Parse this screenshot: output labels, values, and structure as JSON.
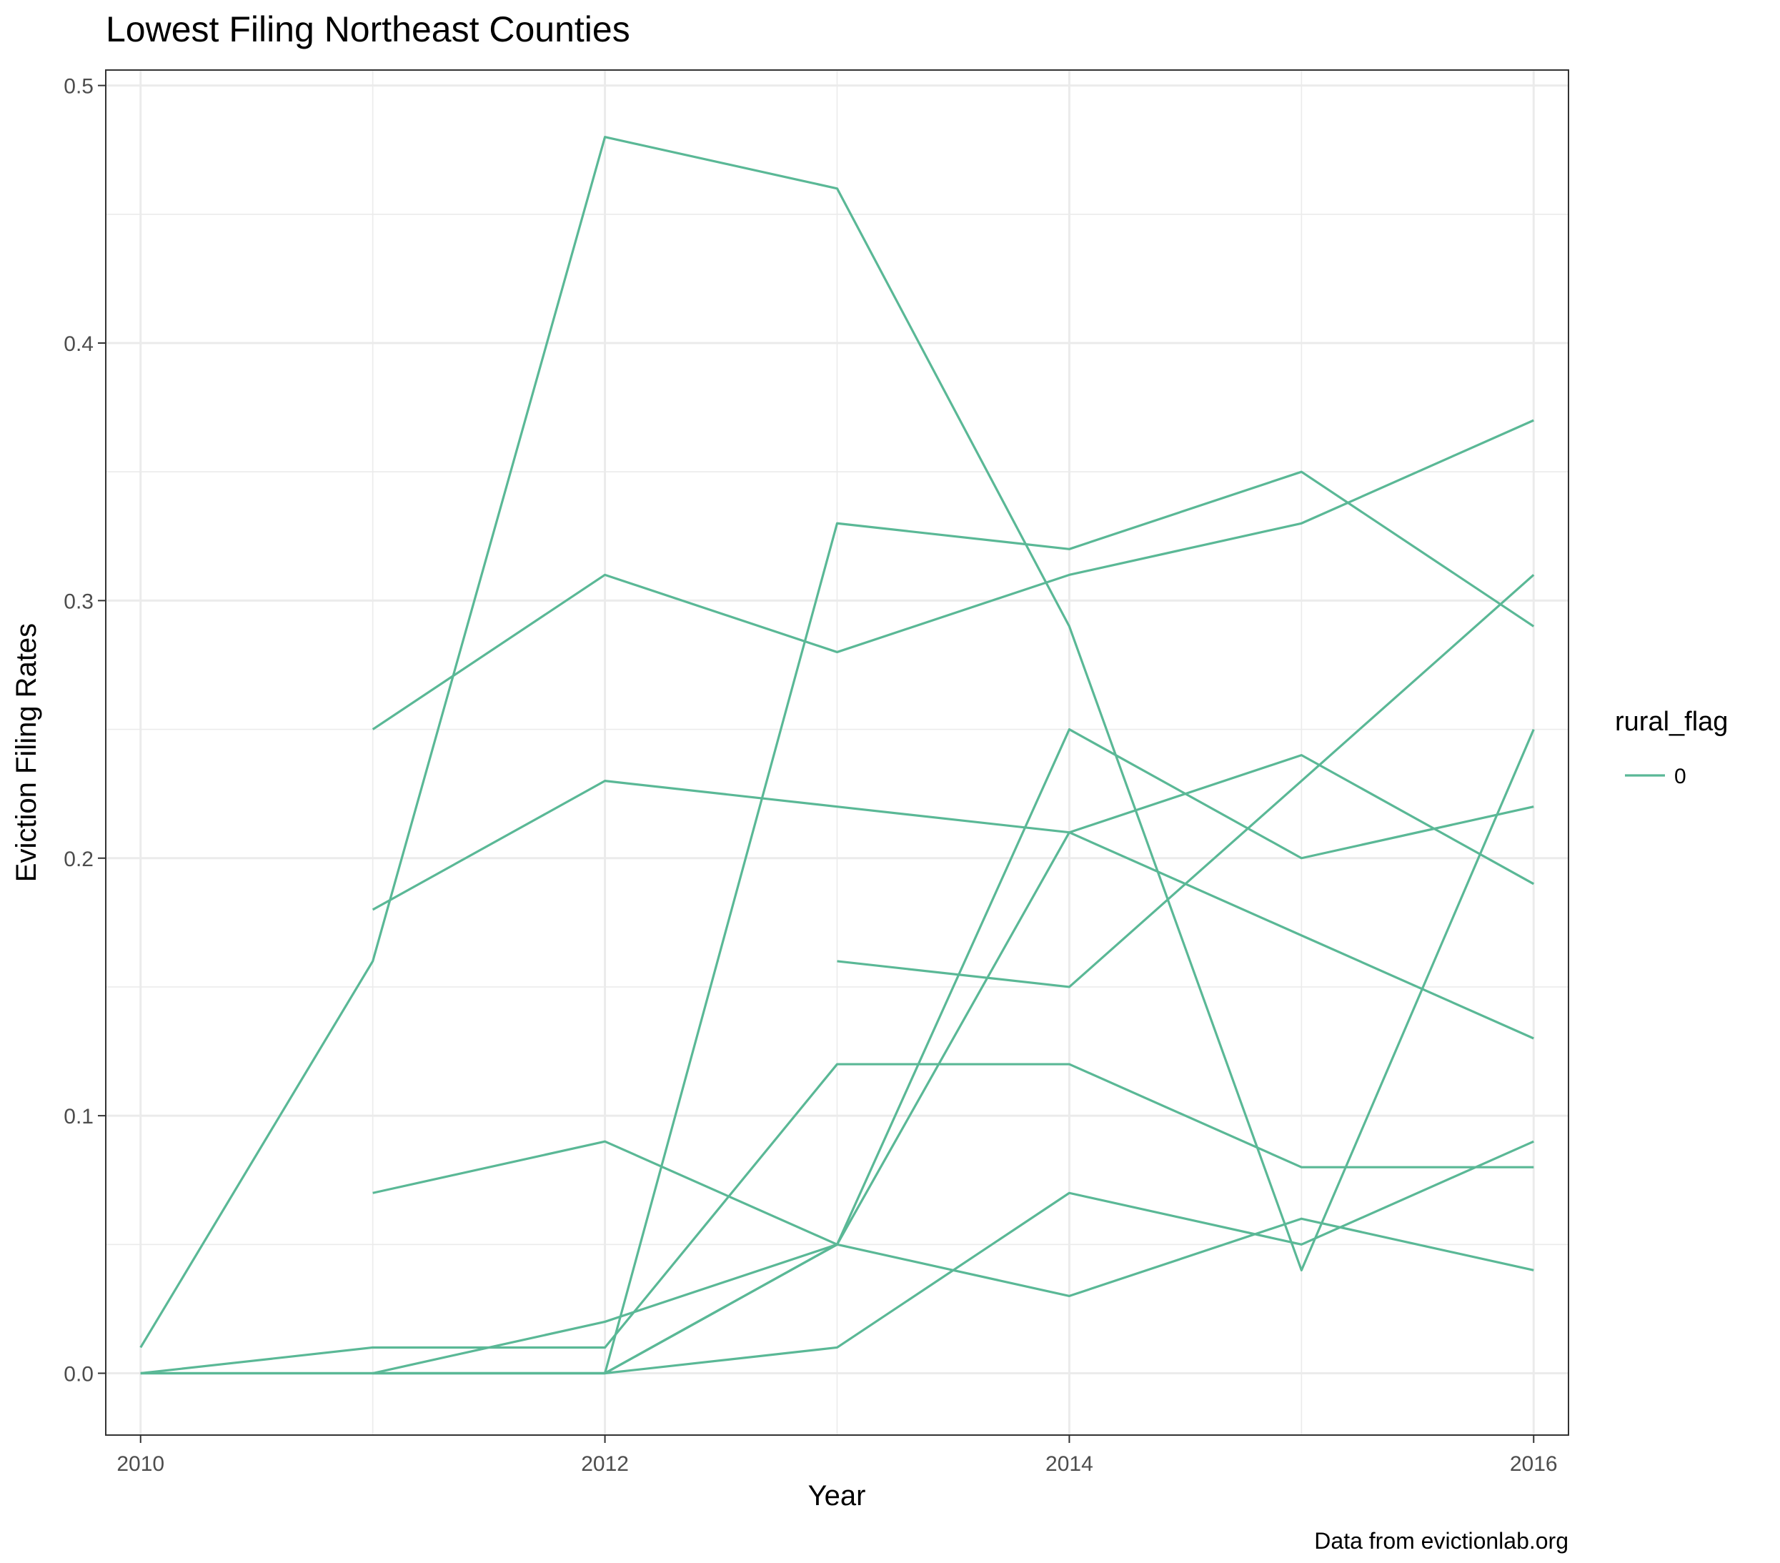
{
  "chart_data": {
    "type": "line",
    "title": "Lowest Filing Northeast Counties",
    "xlabel": "Year",
    "ylabel": "Eviction Filing Rates",
    "caption": "Data from evictionlab.org",
    "xlim": [
      2009.85,
      2016.15
    ],
    "ylim": [
      -0.024,
      0.506
    ],
    "x_ticks": [
      2010,
      2012,
      2014,
      2016
    ],
    "x_tick_labels": [
      "2010",
      "2012",
      "2014",
      "2016"
    ],
    "y_ticks": [
      0.0,
      0.1,
      0.2,
      0.3,
      0.4,
      0.5
    ],
    "y_tick_labels": [
      "0.0",
      "0.1",
      "0.2",
      "0.3",
      "0.4",
      "0.5"
    ],
    "grid": true,
    "legend": {
      "title": "rural_flag",
      "position": "right",
      "entries": [
        {
          "label": "0",
          "color": "#5ab896"
        }
      ]
    },
    "series_color": "#5ab896",
    "series": [
      {
        "x": [
          2010,
          2011,
          2012,
          2013,
          2014,
          2015,
          2016
        ],
        "y": [
          0.01,
          0.16,
          0.48,
          0.46,
          0.29,
          0.04,
          0.25
        ]
      },
      {
        "x": [
          2011,
          2012,
          2013,
          2014,
          2015,
          2016
        ],
        "y": [
          0.25,
          0.31,
          0.28,
          0.31,
          0.33,
          0.37
        ]
      },
      {
        "x": [
          2010,
          2011,
          2012,
          2013,
          2014,
          2015,
          2016
        ],
        "y": [
          0.0,
          0.0,
          0.0,
          0.33,
          0.32,
          0.35,
          0.29
        ]
      },
      {
        "x": [
          2011,
          2012,
          2013,
          2014,
          2015,
          2016
        ],
        "y": [
          0.18,
          0.23,
          0.22,
          0.21,
          0.17,
          0.13
        ]
      },
      {
        "x": [
          2013,
          2014,
          2015,
          2016
        ],
        "y": [
          0.16,
          0.15,
          0.23,
          0.31
        ]
      },
      {
        "x": [
          2011,
          2012,
          2013,
          2014,
          2015,
          2016
        ],
        "y": [
          0.0,
          0.0,
          0.05,
          0.25,
          0.2,
          0.22
        ]
      },
      {
        "x": [
          2012,
          2013,
          2014,
          2015,
          2016
        ],
        "y": [
          0.0,
          0.01,
          0.07,
          0.05,
          0.09
        ]
      },
      {
        "x": [
          2010,
          2011,
          2012,
          2013,
          2014,
          2015,
          2016
        ],
        "y": [
          0.0,
          0.01,
          0.01,
          0.12,
          0.12,
          0.08,
          0.08
        ]
      },
      {
        "x": [
          2011,
          2012,
          2013,
          2014,
          2015,
          2016
        ],
        "y": [
          0.07,
          0.09,
          0.05,
          0.03,
          0.06,
          0.04
        ]
      },
      {
        "x": [
          2011,
          2012,
          2013,
          2014,
          2015,
          2016
        ],
        "y": [
          0.0,
          0.0,
          0.05,
          0.21,
          0.24,
          0.19
        ]
      },
      {
        "x": [
          2010,
          2011,
          2012,
          2013
        ],
        "y": [
          0.0,
          0.0,
          0.02,
          0.05
        ]
      }
    ]
  }
}
